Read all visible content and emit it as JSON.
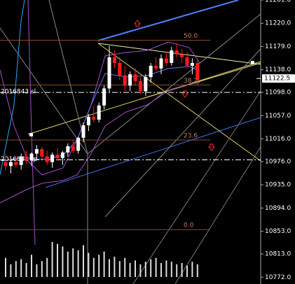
{
  "chart_data": {
    "type": "candlestick",
    "ylim": [
      10760,
      11261
    ],
    "yticks": [
      {
        "value": 11261,
        "label": "11261.0"
      },
      {
        "value": 11220,
        "label": "11220.0"
      },
      {
        "value": 11179,
        "label": "11179.0"
      },
      {
        "value": 11138,
        "label": "11138.0"
      },
      {
        "value": 11098,
        "label": "11098.0"
      },
      {
        "value": 11057,
        "label": "11057.0"
      },
      {
        "value": 11016,
        "label": "11016.0"
      },
      {
        "value": 10976,
        "label": "10976.0"
      },
      {
        "value": 10935,
        "label": "10935.0"
      },
      {
        "value": 10894,
        "label": "10894.0"
      },
      {
        "value": 10853,
        "label": "10853.0"
      },
      {
        "value": 10813,
        "label": "10813.0"
      },
      {
        "value": 10772,
        "label": "10772.0"
      }
    ],
    "open": [
      10975,
      10968,
      10975,
      10970,
      10985,
      10978,
      10990,
      10998,
      10985,
      10975,
      10988,
      10982,
      10992,
      11003,
      10995,
      11018,
      11040,
      11055,
      11050,
      11075,
      11105,
      11160,
      11150,
      11128,
      11110,
      11130,
      11118,
      11100,
      11125,
      11145,
      11140,
      11158,
      11150,
      11172,
      11165,
      11160,
      11145,
      11150
    ],
    "high": [
      10990,
      10980,
      10985,
      10990,
      10995,
      10992,
      11005,
      11002,
      10995,
      10992,
      11000,
      10995,
      11008,
      11015,
      11020,
      11045,
      11060,
      11075,
      11080,
      11110,
      11180,
      11172,
      11160,
      11145,
      11135,
      11140,
      11125,
      11130,
      11150,
      11160,
      11165,
      11170,
      11178,
      11185,
      11175,
      11170,
      11158,
      11155
    ],
    "low": [
      10960,
      10955,
      10965,
      10962,
      10972,
      10968,
      10980,
      10980,
      10970,
      10965,
      10978,
      10970,
      10985,
      10990,
      10990,
      11010,
      11030,
      11045,
      11045,
      11068,
      11098,
      11140,
      11120,
      11100,
      11100,
      11110,
      11095,
      11092,
      11115,
      11135,
      11130,
      11145,
      11145,
      11160,
      11150,
      11140,
      11130,
      11110
    ],
    "close": [
      10968,
      10975,
      10970,
      10985,
      10978,
      10990,
      10998,
      10985,
      10975,
      10988,
      10982,
      10992,
      11003,
      10995,
      11018,
      11040,
      11055,
      11050,
      11075,
      11105,
      11160,
      11150,
      11128,
      11110,
      11130,
      11118,
      11100,
      11125,
      11145,
      11140,
      11158,
      11150,
      11172,
      11165,
      11160,
      11145,
      11150,
      11120
    ],
    "volume": [
      30,
      20,
      25,
      28,
      22,
      35,
      20,
      25,
      30,
      55,
      52,
      48,
      40,
      45,
      42,
      50,
      38,
      30,
      35,
      40,
      28,
      32,
      25,
      30,
      22,
      26,
      20,
      24,
      28,
      30,
      22,
      26,
      24,
      20,
      22,
      18,
      24,
      20
    ],
    "up_color": "#ffffff",
    "down_color": "#ff1a1a",
    "last_price": 11122.5,
    "fib_levels": [
      {
        "label": "50.0",
        "price": 11190
      },
      {
        "label": "38.2",
        "price": 11111
      },
      {
        "label": "23.6",
        "price": 11014
      },
      {
        "label": "0.0",
        "price": 10856
      }
    ],
    "order_lines": [
      {
        "label": "2016843 sl",
        "price": 11098
      },
      {
        "label": "2016843 tp",
        "price": 10979
      }
    ]
  }
}
